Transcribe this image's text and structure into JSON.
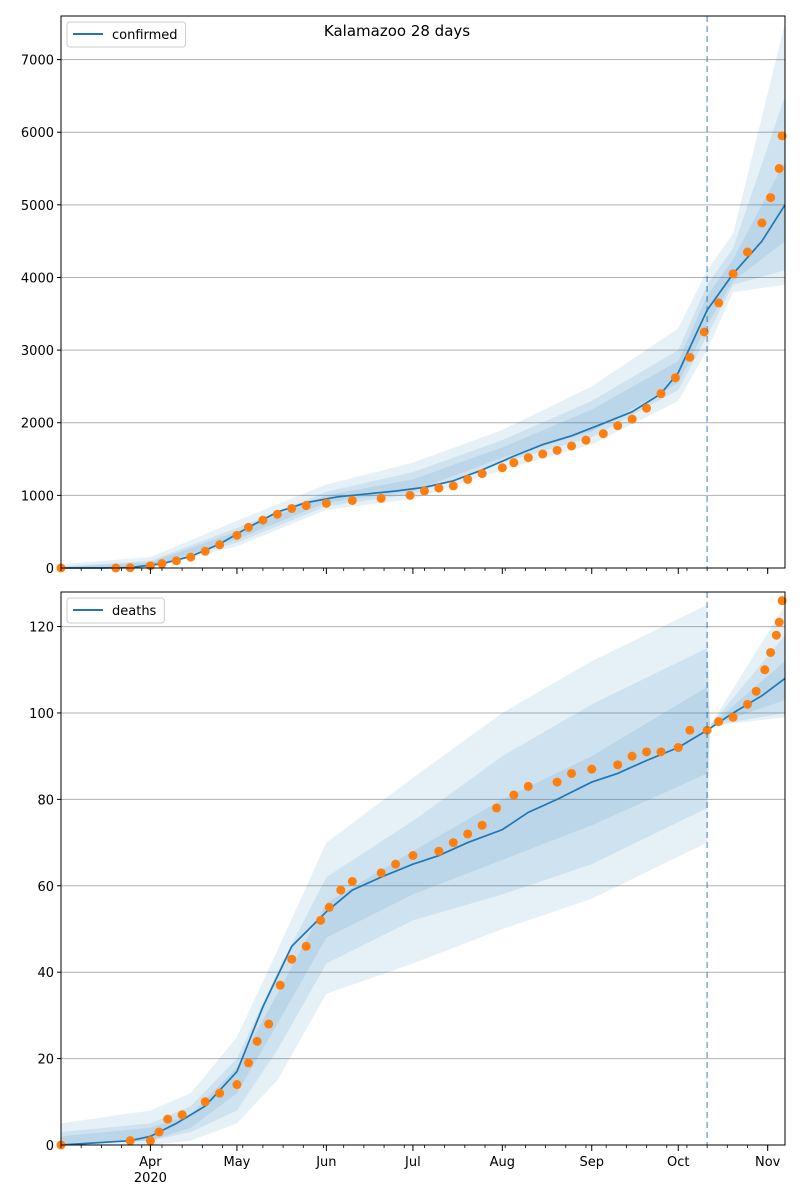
{
  "title": "Kalamazoo 28 days",
  "colors": {
    "model": "#1f77b4",
    "observed": "#ff7f0e",
    "band": "#1f77b4",
    "grid": "#b0b0b0",
    "forecast_line": "#1f77b4"
  },
  "x_axis": {
    "range": [
      "2020-03-01",
      "2020-11-07"
    ],
    "month_ticks": [
      {
        "date": "2020-04-01",
        "label": "Apr",
        "sublabel": "2020"
      },
      {
        "date": "2020-05-01",
        "label": "May",
        "sublabel": ""
      },
      {
        "date": "2020-06-01",
        "label": "Jun",
        "sublabel": ""
      },
      {
        "date": "2020-07-01",
        "label": "Jul",
        "sublabel": ""
      },
      {
        "date": "2020-08-01",
        "label": "Aug",
        "sublabel": ""
      },
      {
        "date": "2020-09-01",
        "label": "Sep",
        "sublabel": ""
      },
      {
        "date": "2020-10-01",
        "label": "Oct",
        "sublabel": ""
      },
      {
        "date": "2020-11-01",
        "label": "Nov",
        "sublabel": ""
      }
    ],
    "forecast_start": "2020-10-11"
  },
  "chart_data": [
    {
      "type": "line",
      "legend": [
        "confirmed"
      ],
      "legend_position": "top-left",
      "grid": "horizontal",
      "ylim": [
        0,
        7600
      ],
      "yticks": [
        0,
        1000,
        2000,
        3000,
        4000,
        5000,
        6000,
        7000
      ],
      "series": [
        {
          "name": "confirmed",
          "x": [
            "2020-03-01",
            "2020-03-15",
            "2020-03-25",
            "2020-04-05",
            "2020-04-15",
            "2020-04-25",
            "2020-05-05",
            "2020-05-15",
            "2020-05-25",
            "2020-06-05",
            "2020-06-15",
            "2020-06-25",
            "2020-07-05",
            "2020-07-15",
            "2020-07-25",
            "2020-08-05",
            "2020-08-15",
            "2020-08-25",
            "2020-09-05",
            "2020-09-15",
            "2020-09-25",
            "2020-10-01",
            "2020-10-11",
            "2020-10-20",
            "2020-10-30",
            "2020-11-07"
          ],
          "values": [
            0,
            0,
            5,
            60,
            160,
            330,
            560,
            770,
            900,
            980,
            1020,
            1060,
            1110,
            1200,
            1350,
            1540,
            1700,
            1820,
            1990,
            2150,
            2400,
            2690,
            3550,
            4050,
            4500,
            5000
          ]
        }
      ],
      "bands": [
        {
          "level": "outer",
          "x": [
            "2020-03-01",
            "2020-04-01",
            "2020-05-01",
            "2020-06-01",
            "2020-07-01",
            "2020-08-01",
            "2020-09-01",
            "2020-10-01",
            "2020-10-11",
            "2020-10-20",
            "2020-11-07"
          ],
          "lower": [
            0,
            0,
            300,
            800,
            950,
            1350,
            1700,
            2300,
            3000,
            3800,
            3900
          ],
          "upper": [
            50,
            150,
            650,
            1150,
            1450,
            1900,
            2500,
            3300,
            4100,
            4600,
            7500
          ]
        },
        {
          "level": "middle",
          "x": [
            "2020-03-01",
            "2020-04-01",
            "2020-05-01",
            "2020-06-01",
            "2020-07-01",
            "2020-08-01",
            "2020-09-01",
            "2020-10-01",
            "2020-10-11",
            "2020-10-20",
            "2020-11-07"
          ],
          "lower": [
            0,
            10,
            350,
            850,
            1020,
            1450,
            1800,
            2450,
            3200,
            3900,
            4100
          ],
          "upper": [
            20,
            100,
            550,
            1050,
            1320,
            1760,
            2300,
            3000,
            3900,
            4400,
            6500
          ]
        },
        {
          "level": "inner",
          "x": [
            "2020-03-01",
            "2020-04-01",
            "2020-05-01",
            "2020-06-01",
            "2020-07-01",
            "2020-08-01",
            "2020-09-01",
            "2020-10-01",
            "2020-10-11",
            "2020-10-20",
            "2020-11-07"
          ],
          "lower": [
            0,
            20,
            400,
            900,
            1060,
            1520,
            1880,
            2550,
            3350,
            3950,
            4500
          ],
          "upper": [
            10,
            80,
            500,
            1000,
            1220,
            1660,
            2180,
            2850,
            3750,
            4250,
            5600
          ]
        }
      ],
      "observed": {
        "x": [
          "2020-03-01",
          "2020-03-20",
          "2020-03-25",
          "2020-04-01",
          "2020-04-05",
          "2020-04-10",
          "2020-04-15",
          "2020-04-20",
          "2020-04-25",
          "2020-05-01",
          "2020-05-05",
          "2020-05-10",
          "2020-05-15",
          "2020-05-20",
          "2020-05-25",
          "2020-06-01",
          "2020-06-10",
          "2020-06-20",
          "2020-06-30",
          "2020-07-05",
          "2020-07-10",
          "2020-07-15",
          "2020-07-20",
          "2020-07-25",
          "2020-08-01",
          "2020-08-05",
          "2020-08-10",
          "2020-08-15",
          "2020-08-20",
          "2020-08-25",
          "2020-08-30",
          "2020-09-05",
          "2020-09-10",
          "2020-09-15",
          "2020-09-20",
          "2020-09-25",
          "2020-09-30",
          "2020-10-05",
          "2020-10-10",
          "2020-10-15",
          "2020-10-20",
          "2020-10-25",
          "2020-10-30",
          "2020-11-02",
          "2020-11-05",
          "2020-11-06"
        ],
        "values": [
          0,
          0,
          5,
          30,
          60,
          100,
          150,
          230,
          320,
          450,
          560,
          660,
          740,
          820,
          860,
          890,
          930,
          960,
          1000,
          1060,
          1100,
          1130,
          1220,
          1300,
          1380,
          1450,
          1520,
          1570,
          1620,
          1680,
          1760,
          1850,
          1960,
          2050,
          2200,
          2400,
          2620,
          2900,
          3250,
          3650,
          4050,
          4350,
          4750,
          5100,
          5500,
          5950
        ]
      }
    },
    {
      "type": "line",
      "legend": [
        "deaths"
      ],
      "legend_position": "top-left",
      "grid": "horizontal",
      "ylim": [
        0,
        128
      ],
      "yticks": [
        0,
        20,
        40,
        60,
        80,
        100,
        120
      ],
      "series": [
        {
          "name": "deaths",
          "x": [
            "2020-03-01",
            "2020-03-25",
            "2020-04-01",
            "2020-04-10",
            "2020-04-20",
            "2020-05-01",
            "2020-05-10",
            "2020-05-20",
            "2020-06-01",
            "2020-06-10",
            "2020-06-20",
            "2020-07-01",
            "2020-07-10",
            "2020-07-20",
            "2020-08-01",
            "2020-08-10",
            "2020-08-20",
            "2020-09-01",
            "2020-09-10",
            "2020-09-20",
            "2020-10-01",
            "2020-10-11",
            "2020-10-20",
            "2020-10-30",
            "2020-11-07"
          ],
          "values": [
            0,
            1,
            2,
            5,
            9,
            17,
            32,
            46,
            54,
            59,
            62,
            65,
            67,
            70,
            73,
            77,
            80,
            84,
            86,
            89,
            92,
            96,
            100,
            104,
            108
          ]
        }
      ],
      "bands": [
        {
          "level": "outer",
          "x": [
            "2020-03-01",
            "2020-04-01",
            "2020-04-15",
            "2020-05-01",
            "2020-05-15",
            "2020-06-01",
            "2020-07-01",
            "2020-08-01",
            "2020-09-01",
            "2020-10-11",
            "2020-10-12",
            "2020-11-07"
          ],
          "lower": [
            0,
            0,
            1,
            5,
            15,
            35,
            42,
            50,
            57,
            70,
            97,
            99
          ],
          "upper": [
            5,
            8,
            12,
            25,
            45,
            70,
            85,
            100,
            112,
            125,
            97,
            125
          ]
        },
        {
          "level": "middle",
          "x": [
            "2020-03-01",
            "2020-04-01",
            "2020-04-15",
            "2020-05-01",
            "2020-05-15",
            "2020-06-01",
            "2020-07-01",
            "2020-08-01",
            "2020-09-01",
            "2020-10-11",
            "2020-10-12",
            "2020-11-07"
          ],
          "lower": [
            0,
            1,
            3,
            8,
            22,
            42,
            52,
            58,
            65,
            78,
            97,
            100
          ],
          "upper": [
            3,
            5,
            9,
            20,
            40,
            62,
            75,
            90,
            102,
            115,
            97,
            118
          ]
        },
        {
          "level": "inner",
          "x": [
            "2020-03-01",
            "2020-04-01",
            "2020-04-15",
            "2020-05-01",
            "2020-05-15",
            "2020-06-01",
            "2020-07-01",
            "2020-08-01",
            "2020-09-01",
            "2020-10-11",
            "2020-10-12",
            "2020-11-07"
          ],
          "lower": [
            0,
            1,
            4,
            12,
            28,
            48,
            58,
            66,
            74,
            86,
            97,
            103
          ],
          "upper": [
            2,
            4,
            7,
            18,
            35,
            56,
            68,
            80,
            90,
            106,
            97,
            112
          ]
        }
      ],
      "observed": {
        "x": [
          "2020-03-01",
          "2020-03-25",
          "2020-04-01",
          "2020-04-04",
          "2020-04-07",
          "2020-04-12",
          "2020-04-20",
          "2020-04-25",
          "2020-05-01",
          "2020-05-05",
          "2020-05-08",
          "2020-05-12",
          "2020-05-16",
          "2020-05-20",
          "2020-05-25",
          "2020-05-30",
          "2020-06-02",
          "2020-06-06",
          "2020-06-10",
          "2020-06-20",
          "2020-06-25",
          "2020-07-01",
          "2020-07-10",
          "2020-07-15",
          "2020-07-20",
          "2020-07-25",
          "2020-07-30",
          "2020-08-05",
          "2020-08-10",
          "2020-08-20",
          "2020-08-25",
          "2020-09-01",
          "2020-09-10",
          "2020-09-15",
          "2020-09-20",
          "2020-09-25",
          "2020-10-01",
          "2020-10-05",
          "2020-10-11",
          "2020-10-15",
          "2020-10-20",
          "2020-10-25",
          "2020-10-28",
          "2020-10-31",
          "2020-11-02",
          "2020-11-04",
          "2020-11-05",
          "2020-11-06"
        ],
        "values": [
          0,
          1,
          1,
          3,
          6,
          7,
          10,
          12,
          14,
          19,
          24,
          28,
          37,
          43,
          46,
          52,
          55,
          59,
          61,
          63,
          65,
          67,
          68,
          70,
          72,
          74,
          78,
          81,
          83,
          84,
          86,
          87,
          88,
          90,
          91,
          91,
          92,
          96,
          96,
          98,
          99,
          102,
          105,
          110,
          114,
          118,
          121,
          126
        ]
      }
    }
  ]
}
